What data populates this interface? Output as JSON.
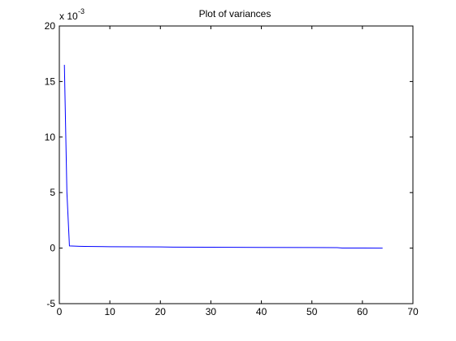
{
  "chart_data": {
    "type": "line",
    "title": "Plot of variances",
    "xlabel": "",
    "ylabel": "",
    "y_exponent_label": {
      "base": "x 10",
      "exponent": "-3"
    },
    "xlim": [
      0,
      70
    ],
    "ylim": [
      -5,
      20
    ],
    "x_ticks": [
      0,
      10,
      20,
      30,
      40,
      50,
      60,
      70
    ],
    "y_ticks": [
      -5,
      0,
      5,
      10,
      15,
      20
    ],
    "grid": false,
    "series": [
      {
        "color": "#0000ff",
        "x": [
          1,
          1.5,
          2,
          3,
          4,
          5,
          10,
          15,
          20,
          22.5,
          30,
          40,
          50,
          55,
          56,
          60,
          64
        ],
        "y": [
          16.5,
          5.0,
          0.2,
          0.18,
          0.16,
          0.15,
          0.13,
          0.12,
          0.11,
          0.09,
          0.08,
          0.06,
          0.05,
          0.04,
          0.01,
          0.005,
          0.0
        ]
      }
    ]
  }
}
